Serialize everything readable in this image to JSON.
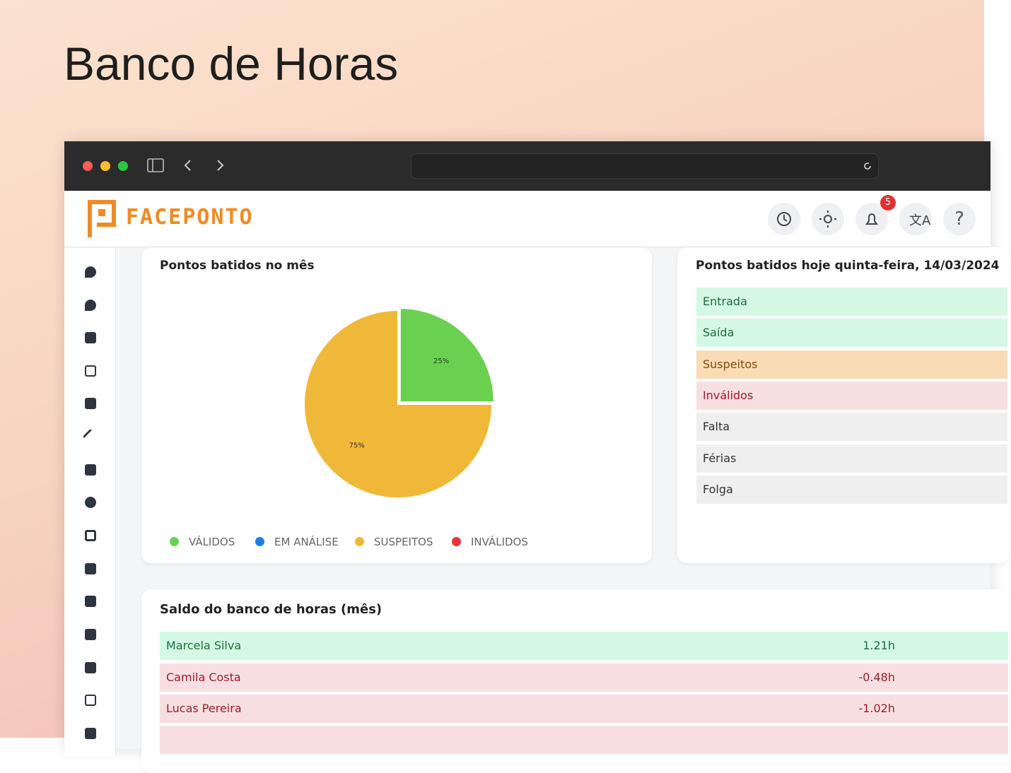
{
  "page": {
    "title": "Banco de Horas"
  },
  "app": {
    "logo": "FACEPONTO",
    "notifications": "5"
  },
  "month_card": {
    "title": "Pontos batidos no mês",
    "pie": {
      "type": "pie",
      "categories": [
        "VÁLIDOS",
        "EM ANÁLISE",
        "SUSPEITOS",
        "INVÁLIDOS"
      ],
      "colors": [
        "#6ad04f",
        "#1a7fe8",
        "#f0b838",
        "#e8323c"
      ],
      "values": [
        25,
        0,
        75,
        0
      ],
      "value_labels": [
        "25%",
        null,
        "75%",
        null
      ]
    }
  },
  "today_card": {
    "title": "Pontos batidos hoje quinta-feira, 14/03/2024",
    "rows": [
      "Entrada",
      "Saída",
      "Suspeitos",
      "Inválidos",
      "Falta",
      "Férias",
      "Folga"
    ]
  },
  "balance_card": {
    "title": "Saldo do banco de horas (mês)",
    "rows": [
      [
        "Marcela Silva",
        "1.21h"
      ],
      [
        "Camila Costa",
        "-0.48h"
      ],
      [
        "Lucas Pereira",
        "-1.02h"
      ]
    ]
  }
}
